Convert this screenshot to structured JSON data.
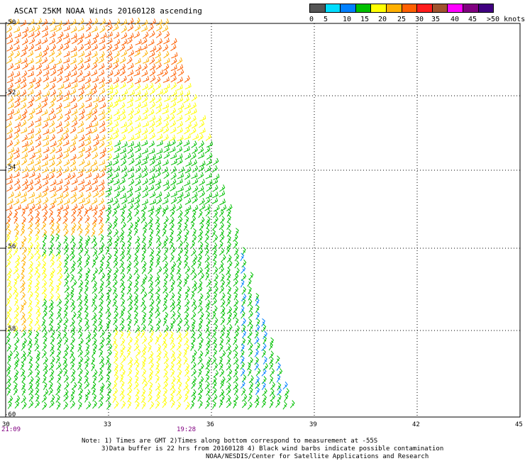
{
  "title": "ASCAT 25KM NOAA Winds 20160128 ascending",
  "legend": {
    "colors": [
      "#555555",
      "#00dcff",
      "#0080ff",
      "#00c000",
      "#ffff00",
      "#ffb000",
      "#ff6000",
      "#ff1c1c",
      "#a0522d",
      "#ff00ff",
      "#800080",
      "#400080"
    ],
    "labels": [
      "0",
      "5",
      "10",
      "15",
      "20",
      "25",
      "30",
      "35",
      "40",
      "45",
      ">50 knots"
    ]
  },
  "lat_labels": [
    "-50",
    "-52",
    "-54",
    "-56",
    "-58",
    "-60"
  ],
  "lon_labels": [
    "30",
    "33",
    "36",
    "39",
    "42",
    "45"
  ],
  "time_labels": [
    "21:09",
    "19:28"
  ],
  "notes": [
    "Note: 1) Times are GMT 2)Times along bottom correspond to measurement at -55S",
    "3)Data buffer is 22 hrs from 20160128 4) Black wind barbs indicate possible contamination",
    "NOAA/NESDIS/Center for Satellite Applications and Research"
  ]
}
